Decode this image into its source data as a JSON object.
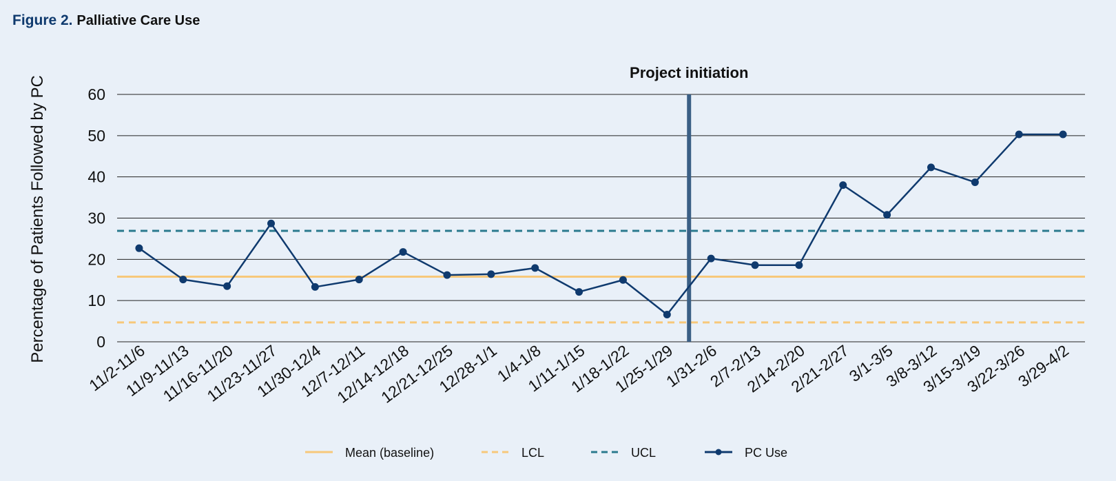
{
  "figure": {
    "label": "Figure 2.",
    "name": "Palliative Care Use"
  },
  "chart_data": {
    "type": "line",
    "title": "Palliative Care Use",
    "xlabel": "",
    "ylabel": "Percentage of Patients Followed by PC",
    "ylim": [
      0,
      60
    ],
    "yticks": [
      0,
      10,
      20,
      30,
      40,
      50,
      60
    ],
    "grid": true,
    "categories": [
      "11/2-11/6",
      "11/9-11/13",
      "11/16-11/20",
      "11/23-11/27",
      "11/30-12/4",
      "12/7-12/11",
      "12/14-12/18",
      "12/21-12/25",
      "12/28-1/1",
      "1/4-1/8",
      "1/11-1/15",
      "1/18-1/22",
      "1/25-1/29",
      "1/31-2/6",
      "2/7-2/13",
      "2/14-2/20",
      "2/21-2/27",
      "3/1-3/5",
      "3/8-3/12",
      "3/15-3/19",
      "3/22-3/26",
      "3/29-4/2"
    ],
    "series": [
      {
        "name": "PC Use",
        "style": "line-marker",
        "color": "#0f3a6e",
        "values": [
          22.7,
          15.1,
          13.5,
          28.7,
          13.3,
          15.1,
          21.8,
          16.2,
          16.4,
          17.9,
          12.1,
          15.0,
          6.6,
          20.2,
          18.6,
          18.6,
          38.0,
          30.8,
          42.3,
          38.7,
          50.3,
          50.3
        ]
      }
    ],
    "reference_lines": [
      {
        "name": "Mean (baseline)",
        "value": 15.8,
        "style": "solid",
        "color": "#f7c87a"
      },
      {
        "name": "LCL",
        "value": 4.7,
        "style": "dashed",
        "color": "#f7c87a"
      },
      {
        "name": "UCL",
        "value": 26.9,
        "style": "dashed",
        "color": "#2a7a8e"
      }
    ],
    "annotation": {
      "text": "Project initiation",
      "between_categories": [
        "1/25-1/29",
        "1/31-2/6"
      ],
      "color": "#3a5f85"
    },
    "legend": {
      "placement": "bottom",
      "entries": [
        "Mean (baseline)",
        "LCL",
        "UCL",
        "PC Use"
      ]
    }
  }
}
